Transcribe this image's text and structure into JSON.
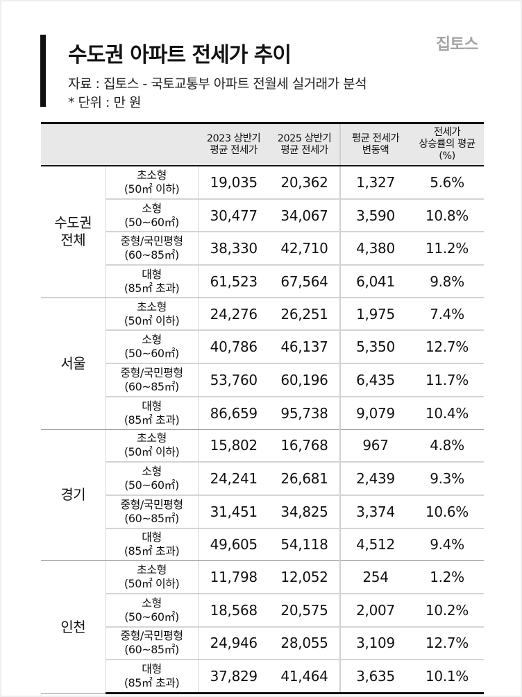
{
  "header": {
    "title": "수도권 아파트 전세가 추이",
    "logo": "집토스",
    "source": "자료 : 집토스 - 국토교통부 아파트 전월세 실거래가 분석",
    "unit": "* 단위 : 만 원"
  },
  "table": {
    "columns": [
      {
        "line1": "",
        "line2": ""
      },
      {
        "line1": "",
        "line2": ""
      },
      {
        "line1": "2023 상반기",
        "line2": "평균 전세가"
      },
      {
        "line1": "2025 상반기",
        "line2": "평균 전세가"
      },
      {
        "line1": "평균 전세가",
        "line2": "변동액"
      },
      {
        "line1": "전세가",
        "line2": "상승률의 평균",
        "line3": "(%)"
      }
    ],
    "groups": [
      {
        "region_line1": "수도권",
        "region_line2": "전체",
        "rows": [
          {
            "type": "초소형",
            "range": "(50㎡ 이하)",
            "y2023": "19,035",
            "y2025": "20,362",
            "change": "1,327",
            "rate": "5.6%"
          },
          {
            "type": "소형",
            "range": "(50~60㎡)",
            "y2023": "30,477",
            "y2025": "34,067",
            "change": "3,590",
            "rate": "10.8%"
          },
          {
            "type": "중형/국민평형",
            "range": "(60~85㎡)",
            "y2023": "38,330",
            "y2025": "42,710",
            "change": "4,380",
            "rate": "11.2%"
          },
          {
            "type": "대형",
            "range": "(85㎡ 초과)",
            "y2023": "61,523",
            "y2025": "67,564",
            "change": "6,041",
            "rate": "9.8%"
          }
        ]
      },
      {
        "region_line1": "서울",
        "region_line2": "",
        "rows": [
          {
            "type": "초소형",
            "range": "(50㎡ 이하)",
            "y2023": "24,276",
            "y2025": "26,251",
            "change": "1,975",
            "rate": "7.4%"
          },
          {
            "type": "소형",
            "range": "(50~60㎡)",
            "y2023": "40,786",
            "y2025": "46,137",
            "change": "5,350",
            "rate": "12.7%"
          },
          {
            "type": "중형/국민평형",
            "range": "(60~85㎡)",
            "y2023": "53,760",
            "y2025": "60,196",
            "change": "6,435",
            "rate": "11.7%"
          },
          {
            "type": "대형",
            "range": "(85㎡ 초과)",
            "y2023": "86,659",
            "y2025": "95,738",
            "change": "9,079",
            "rate": "10.4%"
          }
        ]
      },
      {
        "region_line1": "경기",
        "region_line2": "",
        "rows": [
          {
            "type": "초소형",
            "range": "(50㎡ 이하)",
            "y2023": "15,802",
            "y2025": "16,768",
            "change": "967",
            "rate": "4.8%"
          },
          {
            "type": "소형",
            "range": "(50~60㎡)",
            "y2023": "24,241",
            "y2025": "26,681",
            "change": "2,439",
            "rate": "9.3%"
          },
          {
            "type": "중형/국민평형",
            "range": "(60~85㎡)",
            "y2023": "31,451",
            "y2025": "34,825",
            "change": "3,374",
            "rate": "10.6%"
          },
          {
            "type": "대형",
            "range": "(85㎡ 초과)",
            "y2023": "49,605",
            "y2025": "54,118",
            "change": "4,512",
            "rate": "9.4%"
          }
        ]
      },
      {
        "region_line1": "인천",
        "region_line2": "",
        "rows": [
          {
            "type": "초소형",
            "range": "(50㎡ 이하)",
            "y2023": "11,798",
            "y2025": "12,052",
            "change": "254",
            "rate": "1.2%"
          },
          {
            "type": "소형",
            "range": "(50~60㎡)",
            "y2023": "18,568",
            "y2025": "20,575",
            "change": "2,007",
            "rate": "10.2%"
          },
          {
            "type": "중형/국민평형",
            "range": "(60~85㎡)",
            "y2023": "24,946",
            "y2025": "28,055",
            "change": "3,109",
            "rate": "12.7%"
          },
          {
            "type": "대형",
            "range": "(85㎡ 초과)",
            "y2023": "37,829",
            "y2025": "41,464",
            "change": "3,635",
            "rate": "10.1%"
          }
        ]
      }
    ]
  },
  "colors": {
    "text": "#111111",
    "logo": "#a6a6a6",
    "header_bg": "#e8e8e8",
    "grid": "#d4d4d4",
    "rule": "#111111"
  }
}
